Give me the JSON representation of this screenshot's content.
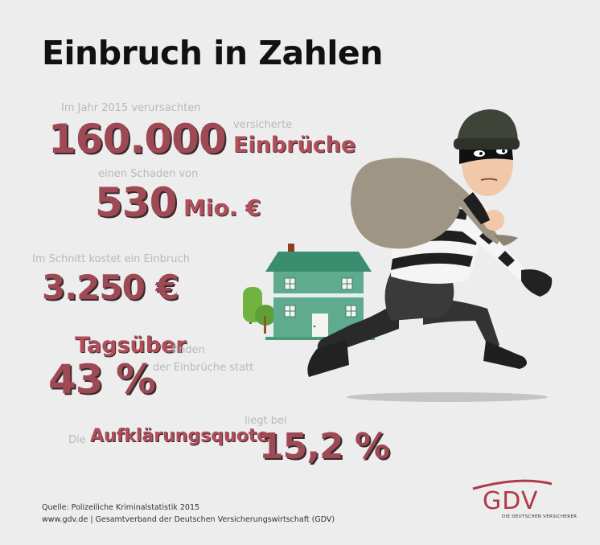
{
  "title": "Einbruch in Zahlen",
  "stats": {
    "intro": "Im Jahr 2015 verursachten",
    "count_value": "160.000",
    "count_pre": "versicherte",
    "count_label": "Einbrüche",
    "damage_pre": "einen Schaden von",
    "damage_value": "530",
    "damage_unit": "Mio. €",
    "avg_intro": "Im Schnitt kostet ein Einbruch",
    "avg_value": "3.250 €",
    "day_label": "Tagsüber",
    "day_finden": "finden",
    "day_value": "43 %",
    "day_post": "der Einbrüche statt",
    "clear_die": "Die",
    "clear_label": "Aufklärungsquote",
    "clear_liegt": "liegt bei",
    "clear_value": "15,2 %"
  },
  "footer": {
    "source": "Quelle: Polizeiliche Kriminalstatistik 2015",
    "publisher": "www.gdv.de | Gesamtverband der Deutschen Versicherungswirtschaft (GDV)"
  },
  "logo": {
    "text": "GDV",
    "subtitle": "DIE DEUTSCHEN VERSICHERER"
  },
  "colors": {
    "accent": "#9e4a55",
    "background": "#ededee",
    "house": "#5eab8f",
    "roof": "#3a8e70"
  },
  "icons": [
    "house-illustration",
    "tree-illustration",
    "burglar-illustration"
  ]
}
